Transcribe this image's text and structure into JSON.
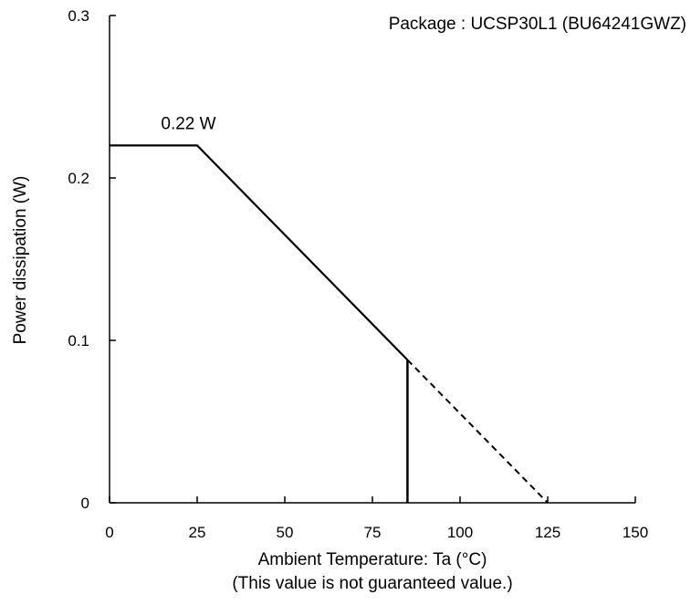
{
  "chart_data": {
    "type": "line",
    "title": "",
    "package_label": "Package : UCSP30L1 (BU64241GWZ)",
    "xlabel": "Ambient Temperature: Ta (°C)",
    "xlabel_note": "(This value is not guaranteed value.)",
    "ylabel": "Power dissipation (W)",
    "xlim": [
      0,
      150
    ],
    "ylim": [
      0,
      0.3
    ],
    "x_ticks": [
      0,
      25,
      50,
      75,
      100,
      125,
      150
    ],
    "x_tick_labels": [
      "0",
      "25",
      "50",
      "75",
      "100",
      "125",
      "150"
    ],
    "y_ticks": [
      0,
      0.1,
      0.2,
      0.3
    ],
    "y_tick_labels": [
      "0",
      "0.1",
      "0.2",
      "0.3"
    ],
    "grid": false,
    "series": [
      {
        "line_style": "solid",
        "x": [
          0,
          25,
          85
        ],
        "y": [
          0.22,
          0.22,
          0.088
        ]
      },
      {
        "line_style": "dashed",
        "x": [
          85,
          125
        ],
        "y": [
          0.088,
          0
        ]
      }
    ],
    "vertical_lines": [
      {
        "x": 85,
        "y_from": 0,
        "y_to": 0.088
      }
    ],
    "annotations": [
      {
        "text": "0.22 W",
        "x": 10,
        "y": 0.22
      }
    ],
    "line_color": "#000000"
  }
}
